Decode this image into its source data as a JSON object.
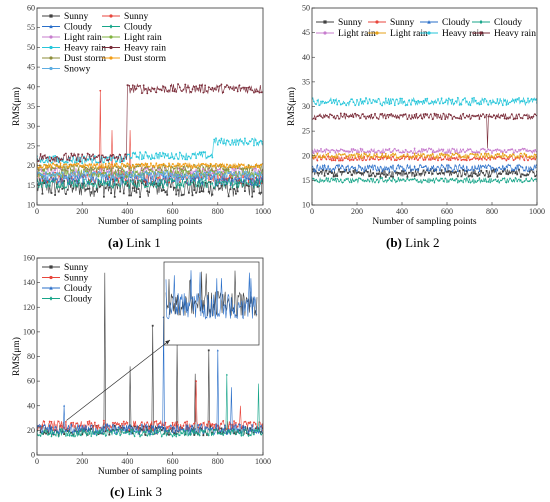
{
  "figure": {
    "captions": [
      {
        "label": "(a)",
        "text": " Link 1"
      },
      {
        "label": "(b)",
        "text": " Link 2"
      },
      {
        "label": "(c)",
        "text": " Link 3"
      }
    ]
  },
  "chart_data": [
    {
      "type": "line",
      "id": "link1",
      "xlabel": "Number of sampling points",
      "ylabel": "RMS(μm)",
      "xlim": [
        0,
        1000
      ],
      "ylim": [
        10,
        60
      ],
      "xticks": [
        "0",
        "200",
        "400",
        "600",
        "800",
        "1000"
      ],
      "yticks": [
        "10",
        "15",
        "20",
        "25",
        "30",
        "35",
        "40",
        "45",
        "50",
        "55",
        "60"
      ],
      "legend_position": "top-left",
      "legend_columns": 2,
      "series": [
        {
          "name": "Sunny",
          "color": "#404040",
          "marker": "square",
          "values": {
            "type": "flat",
            "level": 14.5,
            "noise": 2.5
          }
        },
        {
          "name": "Sunny",
          "color": "#e8463c",
          "marker": "circle",
          "values": {
            "type": "flat_spikes",
            "level": 17,
            "noise": 1.5,
            "spikes": [
              [
                280,
                39
              ],
              [
                330,
                29
              ],
              [
                410,
                29
              ]
            ]
          }
        },
        {
          "name": "Cloudy",
          "color": "#2a6fc9",
          "marker": "triangle",
          "values": {
            "type": "flat",
            "level": 16.5,
            "noise": 1.5
          }
        },
        {
          "name": "Cloudy",
          "color": "#17a589",
          "marker": "diamond",
          "values": {
            "type": "flat",
            "level": 15.5,
            "noise": 1.2
          }
        },
        {
          "name": "Light rain",
          "color": "#c77dce",
          "marker": "circle",
          "values": {
            "type": "flat",
            "level": 18.5,
            "noise": 1
          }
        },
        {
          "name": "Light rain",
          "color": "#7fb23c",
          "marker": "circle",
          "values": {
            "type": "flat",
            "level": 18,
            "noise": 1
          }
        },
        {
          "name": "Heavy rain",
          "color": "#26c6da",
          "marker": "circle",
          "values": {
            "type": "step",
            "segments": [
              [
                0,
                400,
                21.5
              ],
              [
                400,
                780,
                22.5
              ],
              [
                780,
                1000,
                26
              ]
            ],
            "noise": 1
          }
        },
        {
          "name": "Heavy rain",
          "color": "#7b2d3a",
          "marker": "circle",
          "values": {
            "type": "step",
            "segments": [
              [
                0,
                400,
                22
              ],
              [
                400,
                1000,
                39.5
              ]
            ],
            "noise": 1.2
          }
        },
        {
          "name": "Dust storm",
          "color": "#8d8d3a",
          "marker": "circle",
          "values": {
            "type": "flat",
            "level": 19.5,
            "noise": 0.8
          }
        },
        {
          "name": "Dust storm",
          "color": "#f39c12",
          "marker": "circle",
          "values": {
            "type": "flat",
            "level": 20,
            "noise": 0.6
          }
        },
        {
          "name": "Snowy",
          "color": "#5dade2",
          "marker": "circle",
          "values": {
            "type": "flat",
            "level": 17.5,
            "noise": 1
          }
        }
      ]
    },
    {
      "type": "line",
      "id": "link2",
      "xlabel": "Number of sampling points",
      "ylabel": "RMS(μm)",
      "xlim": [
        0,
        1000
      ],
      "ylim": [
        10,
        50
      ],
      "xticks": [
        "0",
        "200",
        "400",
        "600",
        "800",
        "1000"
      ],
      "yticks": [
        "10",
        "15",
        "20",
        "25",
        "30",
        "35",
        "40",
        "45",
        "50"
      ],
      "legend_position": "top",
      "legend_columns": 4,
      "series": [
        {
          "name": "Sunny",
          "color": "#404040",
          "marker": "square",
          "values": {
            "type": "flat",
            "level": 16.5,
            "noise": 0.8
          }
        },
        {
          "name": "Sunny",
          "color": "#e8463c",
          "marker": "circle",
          "values": {
            "type": "flat",
            "level": 19.5,
            "noise": 0.5
          }
        },
        {
          "name": "Cloudy",
          "color": "#2a6fc9",
          "marker": "triangle",
          "values": {
            "type": "flat",
            "level": 17.5,
            "noise": 0.7
          }
        },
        {
          "name": "Cloudy",
          "color": "#17a589",
          "marker": "diamond",
          "values": {
            "type": "flat",
            "level": 15,
            "noise": 0.5
          }
        },
        {
          "name": "Light rain",
          "color": "#c77dce",
          "marker": "circle",
          "values": {
            "type": "flat",
            "level": 21,
            "noise": 0.5
          }
        },
        {
          "name": "Light rain",
          "color": "#e6a21a",
          "marker": "circle",
          "values": {
            "type": "flat",
            "level": 20,
            "noise": 0.5
          }
        },
        {
          "name": "Heavy rain",
          "color": "#26c6da",
          "marker": "circle",
          "values": {
            "type": "flat",
            "level": 31,
            "noise": 0.8
          }
        },
        {
          "name": "Heavy rain",
          "color": "#7b2d3a",
          "marker": "circle",
          "values": {
            "type": "flat_spikes",
            "level": 28,
            "noise": 0.6,
            "spikes": [
              [
                780,
                21.5
              ]
            ]
          }
        }
      ]
    },
    {
      "type": "line",
      "id": "link3",
      "xlabel": "Number of sampling points",
      "ylabel": "RMS(μm)",
      "xlim": [
        0,
        1000
      ],
      "ylim": [
        0,
        160
      ],
      "xticks": [
        "0",
        "200",
        "400",
        "600",
        "800",
        "1000"
      ],
      "yticks": [
        "0",
        "20",
        "40",
        "60",
        "80",
        "100",
        "120",
        "140",
        "160"
      ],
      "legend_position": "top-left",
      "legend_columns": 1,
      "inset": true,
      "series": [
        {
          "name": "Sunny",
          "color": "#404040",
          "marker": "square",
          "values": {
            "type": "flat_spikes",
            "level": 20,
            "noise": 4,
            "spikes": [
              [
                300,
                148
              ],
              [
                410,
                72
              ],
              [
                510,
                105
              ],
              [
                620,
                90
              ],
              [
                700,
                66
              ],
              [
                760,
                85
              ]
            ]
          }
        },
        {
          "name": "Sunny",
          "color": "#e8463c",
          "marker": "circle",
          "values": {
            "type": "flat_spikes",
            "level": 24,
            "noise": 4,
            "spikes": [
              [
                705,
                60
              ],
              [
                900,
                40
              ]
            ]
          }
        },
        {
          "name": "Cloudy",
          "color": "#2a6fc9",
          "marker": "triangle",
          "values": {
            "type": "flat_spikes",
            "level": 21,
            "noise": 4,
            "spikes": [
              [
                560,
                112
              ],
              [
                800,
                85
              ],
              [
                120,
                40
              ],
              [
                860,
                55
              ]
            ]
          }
        },
        {
          "name": "Cloudy",
          "color": "#17a589",
          "marker": "diamond",
          "values": {
            "type": "flat_spikes",
            "level": 18,
            "noise": 3,
            "spikes": [
              [
                980,
                58
              ],
              [
                840,
                65
              ]
            ]
          }
        }
      ]
    }
  ]
}
